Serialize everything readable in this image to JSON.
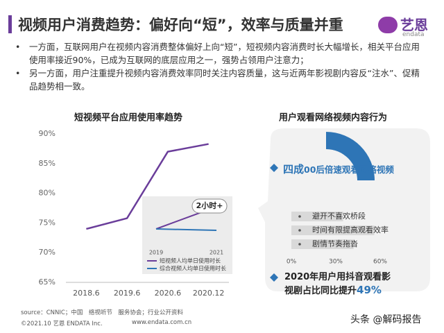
{
  "header": {
    "title": "视频用户消费趋势：偏好向“短”，效率与质量并重",
    "logo_cn": "艺恩",
    "logo_en": "endata"
  },
  "bullets": [
    "一方面，互联网用户在视频内容消费整体偏好上向“短”，短视频内容消费时长大幅增长，相关平台应用使用率接近90%，已成为互联网的底层应用之一，强势占领用户注意力；",
    "另一方面，用户注重提升视频内容消费效率同时关注内容质量，这与近两年影视剧内容反“注水”、促精品趋势相一致。"
  ],
  "chart_data": [
    {
      "type": "line",
      "title": "短视频平台应用使用率趋势",
      "categories": [
        "2018.6",
        "2019.6",
        "2020.6",
        "2020.12"
      ],
      "values": [
        74,
        75.8,
        87,
        88.3
      ],
      "color": "#6a3d9a",
      "ylim": [
        65,
        90
      ],
      "yticks": [
        {
          "value": 65,
          "label": "65%"
        },
        {
          "value": 70,
          "label": "70%"
        },
        {
          "value": 75,
          "label": "75%"
        },
        {
          "value": 80,
          "label": "80%"
        },
        {
          "value": 85,
          "label": "85%"
        },
        {
          "value": 90,
          "label": "90%"
        }
      ],
      "grid": false,
      "inset": {
        "type": "line",
        "categories": [
          "2019",
          "2021"
        ],
        "ylim": [
          1,
          2.5
        ],
        "annotation": "2小时+",
        "series": [
          {
            "name": "短视频人均单日使用时长",
            "color": "#6a3d9a",
            "values": [
              1.5,
              2.3
            ]
          },
          {
            "name": "综合视频人均单日使用时长",
            "color": "#2e75b6",
            "values": [
              1.5,
              1.45
            ]
          }
        ]
      }
    },
    {
      "type": "bar",
      "title": "用户观看网络视频内容行为",
      "highlight": {
        "emphasis": "四成",
        "text": "00后倍速观看网络视频"
      },
      "categories": [
        "避开不喜欢桥段",
        "时间有限提高观看效率",
        "剧情节奏拖沓"
      ],
      "values": [
        35,
        56,
        42
      ],
      "color": "#d9d9d9",
      "xlim": [
        0,
        60
      ],
      "xticks": [
        {
          "value": 0,
          "label": "0%"
        },
        {
          "value": 30,
          "label": "30%"
        },
        {
          "value": 60,
          "label": "60%"
        }
      ],
      "note": {
        "text": "2020年用户用抖音观看影视剧占比同比提升",
        "emphasis": "49%"
      }
    }
  ],
  "footer": {
    "source": "source：CNNIC；中国　络视听节　服务协会；行业公开资料",
    "copyright": "©2021.10 艺恩 ENDATA Inc.",
    "url": "www.endata.com.cn",
    "watermark": "头条 @解码报告"
  }
}
